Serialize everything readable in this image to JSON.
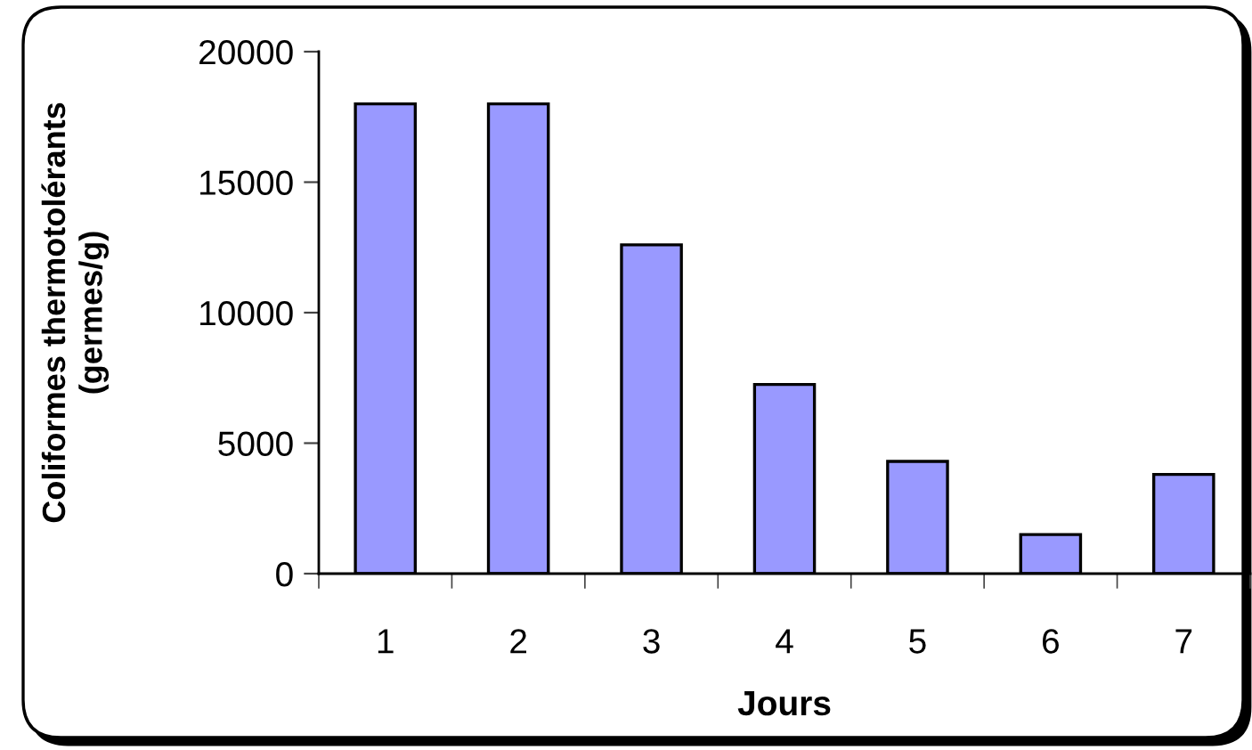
{
  "chart_data": {
    "type": "bar",
    "xlabel": "Jours",
    "ylabel": "Coliformes thermotolérants\n(germes/g)",
    "categories": [
      "1",
      "2",
      "3",
      "4",
      "5",
      "6",
      "7"
    ],
    "values": [
      18000,
      18000,
      12600,
      7250,
      4300,
      1500,
      3800
    ],
    "color": "#9999ff",
    "ylim": [
      0,
      20000
    ],
    "yticks": [
      0,
      5000,
      10000,
      15000,
      20000
    ],
    "grid": false,
    "legend": false
  }
}
